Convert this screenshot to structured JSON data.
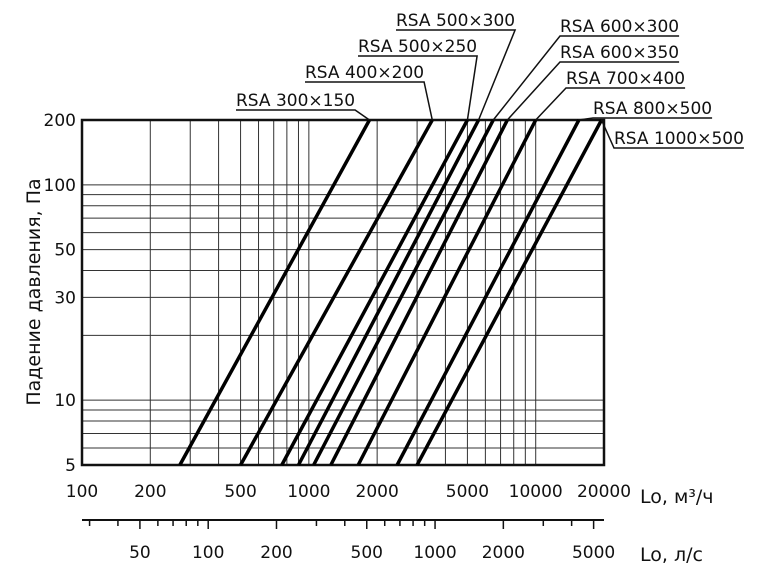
{
  "chart_data": {
    "type": "line",
    "x_scale": "log",
    "y_scale": "log",
    "xlim": [
      100,
      20000
    ],
    "ylim": [
      5,
      200
    ],
    "ylabel": "Падение давления, Па",
    "xlabel": "Lo, м³/ч",
    "x2label": "Lo, л/с",
    "x_ticks": [
      {
        "value": 100,
        "label": "100"
      },
      {
        "value": 200,
        "label": "200"
      },
      {
        "value": 500,
        "label": "500"
      },
      {
        "value": 1000,
        "label": "1000"
      },
      {
        "value": 2000,
        "label": "2000"
      },
      {
        "value": 5000,
        "label": "5000"
      },
      {
        "value": 10000,
        "label": "10000"
      },
      {
        "value": 20000,
        "label": "20000"
      }
    ],
    "y_ticks": [
      {
        "value": 5,
        "label": "5"
      },
      {
        "value": 10,
        "label": "10"
      },
      {
        "value": 30,
        "label": "30"
      },
      {
        "value": 50,
        "label": "50"
      },
      {
        "value": 100,
        "label": "100"
      },
      {
        "value": 200,
        "label": "200"
      }
    ],
    "x2_ticks": [
      {
        "value": 50,
        "label": "50"
      },
      {
        "value": 100,
        "label": "100"
      },
      {
        "value": 200,
        "label": "200"
      },
      {
        "value": 500,
        "label": "500"
      },
      {
        "value": 1000,
        "label": "1000"
      },
      {
        "value": 2000,
        "label": "2000"
      },
      {
        "value": 5000,
        "label": "5000"
      }
    ],
    "series": [
      {
        "name": "RSA 300×150",
        "x": [
          270,
          1850
        ],
        "y": [
          5,
          200
        ]
      },
      {
        "name": "RSA 400×200",
        "x": [
          500,
          3500
        ],
        "y": [
          5,
          200
        ]
      },
      {
        "name": "RSA 500×250",
        "x": [
          760,
          5000
        ],
        "y": [
          5,
          200
        ]
      },
      {
        "name": "RSA 500×300",
        "x": [
          900,
          5600
        ],
        "y": [
          5,
          200
        ]
      },
      {
        "name": "RSA 600×300",
        "x": [
          1050,
          6500
        ],
        "y": [
          5,
          200
        ]
      },
      {
        "name": "RSA 600×350",
        "x": [
          1250,
          7500
        ],
        "y": [
          5,
          200
        ]
      },
      {
        "name": "RSA 700×400",
        "x": [
          1650,
          10000
        ],
        "y": [
          5,
          200
        ]
      },
      {
        "name": "RSA 800×500",
        "x": [
          2450,
          15500
        ],
        "y": [
          5,
          200
        ]
      },
      {
        "name": "RSA 1000×500",
        "x": [
          3000,
          19500
        ],
        "y": [
          5,
          200
        ]
      }
    ]
  }
}
